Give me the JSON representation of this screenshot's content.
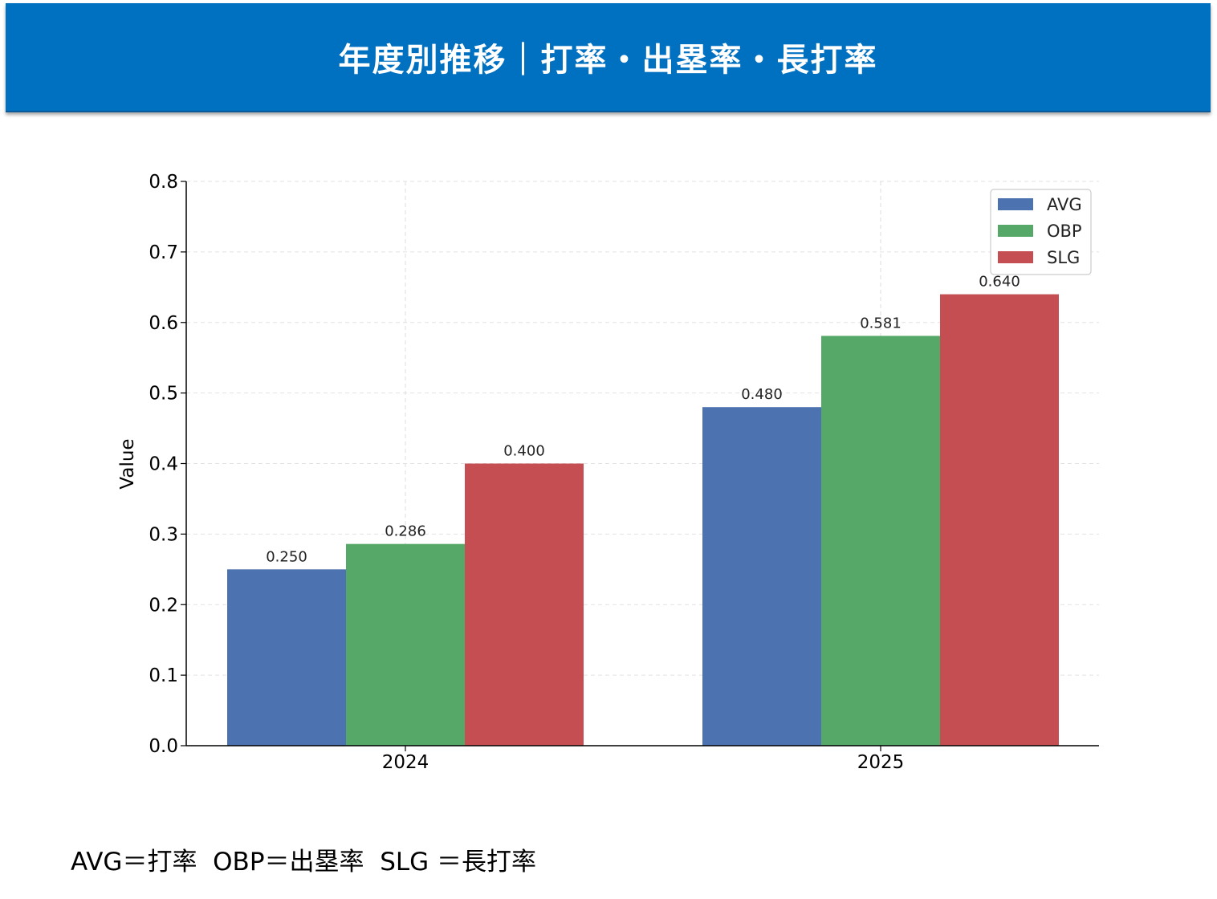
{
  "header": {
    "title": "年度別推移｜打率・出塁率・長打率"
  },
  "chart_data": {
    "type": "bar",
    "categories": [
      "2024",
      "2025"
    ],
    "series": [
      {
        "name": "AVG",
        "values": [
          0.25,
          0.48
        ],
        "labels": [
          "0.250",
          "0.480"
        ],
        "color": "#4c72b0"
      },
      {
        "name": "OBP",
        "values": [
          0.286,
          0.581
        ],
        "labels": [
          "0.286",
          "0.581"
        ],
        "color": "#55a868"
      },
      {
        "name": "SLG",
        "values": [
          0.4,
          0.64
        ],
        "labels": [
          "0.400",
          "0.640"
        ],
        "color": "#c44e52"
      }
    ],
    "ylabel": "Value",
    "xlabel": "",
    "ylim": [
      0,
      0.8
    ],
    "yticks": [
      "0.0",
      "0.1",
      "0.2",
      "0.3",
      "0.4",
      "0.5",
      "0.6",
      "0.7",
      "0.8"
    ],
    "grid": true,
    "legend_position": "top-right"
  },
  "footnote": "AVG＝打率  OBP＝出塁率  SLG ＝長打率"
}
